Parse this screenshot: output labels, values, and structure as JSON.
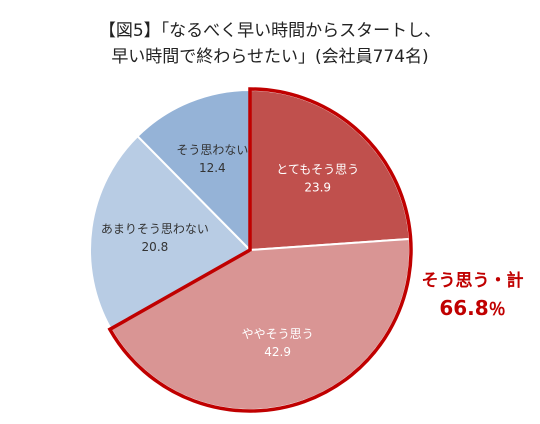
{
  "title": {
    "line1": "【図5】「なるべく早い時間からスタートし、",
    "line2": "早い時間で終わらせたい」(会社員774名)"
  },
  "summary": {
    "label": "そう思う・計",
    "value": "66.8",
    "unit": "％"
  },
  "colors": {
    "accent": "#c00000",
    "slice_strong": "#c0504d",
    "slice_somewhat": "#d99594",
    "slice_not_much": "#b8cce4",
    "slice_not": "#95b3d7"
  },
  "chart_data": {
    "type": "pie",
    "title": "【図5】「なるべく早い時間からスタートし、早い時間で終わらせたい」(会社員774名)",
    "start": "12 o'clock",
    "direction": "clockwise",
    "slices": [
      {
        "label": "とてもそう思う",
        "value": 23.9,
        "color": "#c0504d",
        "text_color": "#ffffff",
        "highlight": true
      },
      {
        "label": "ややそう思う",
        "value": 42.9,
        "color": "#d99594",
        "text_color": "#ffffff",
        "highlight": true
      },
      {
        "label": "あまりそう思わない",
        "value": 20.8,
        "color": "#b8cce4",
        "text_color": "#333333",
        "highlight": false
      },
      {
        "label": "そう思わない",
        "value": 12.4,
        "color": "#95b3d7",
        "text_color": "#333333",
        "highlight": false
      }
    ],
    "highlight_group": {
      "label": "そう思う・計",
      "value": 66.8,
      "unit": "％",
      "outline_color": "#c00000"
    }
  }
}
